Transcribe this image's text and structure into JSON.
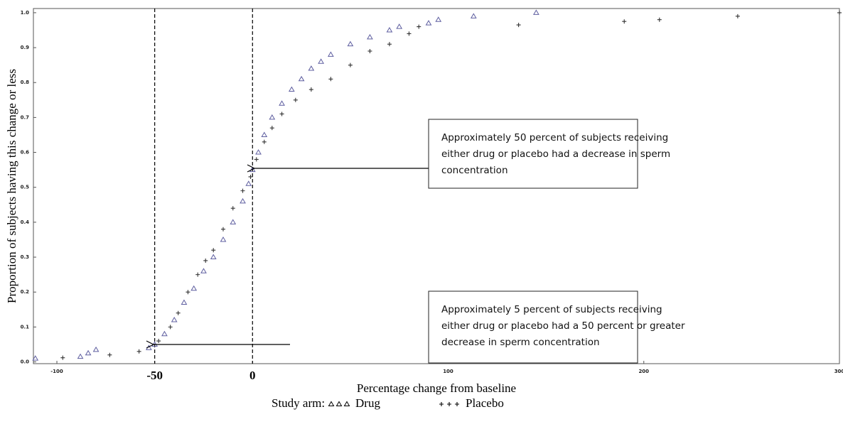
{
  "chart_data": {
    "type": "scatter",
    "xlabel": "Percentage change from baseline",
    "ylabel": "Proportion of subjects having this change or less",
    "legend_title": "Study arm:",
    "xlim": [
      -112,
      300
    ],
    "ylim": [
      -0.005,
      1.012
    ],
    "xticks": [
      -100,
      -50,
      0,
      100,
      200,
      300
    ],
    "reference_lines": [
      -50,
      0
    ],
    "yticks": [
      {
        "value": 0,
        "label": "0.0"
      },
      0.1,
      0.2,
      0.3,
      0.4,
      0.5,
      0.6,
      0.7,
      0.8,
      0.9,
      {
        "value": 1,
        "label": "1.0"
      }
    ],
    "series": [
      {
        "name": "Drug",
        "marker": "triangle",
        "color": "#5f5fa0",
        "x": [
          -111,
          -88,
          -84,
          -80,
          -53,
          -50,
          -45,
          -40,
          -35,
          -30,
          -25,
          -20,
          -15,
          -10,
          -5,
          -2,
          0,
          3,
          6,
          10,
          15,
          20,
          25,
          30,
          35,
          40,
          50,
          60,
          70,
          75,
          90,
          95,
          113,
          145
        ],
        "values": [
          0.01,
          0.015,
          0.025,
          0.035,
          0.04,
          0.05,
          0.08,
          0.12,
          0.17,
          0.21,
          0.26,
          0.3,
          0.35,
          0.4,
          0.46,
          0.51,
          0.55,
          0.6,
          0.65,
          0.7,
          0.74,
          0.78,
          0.81,
          0.84,
          0.86,
          0.88,
          0.91,
          0.93,
          0.95,
          0.96,
          0.97,
          0.98,
          0.99,
          1.0
        ]
      },
      {
        "name": "Placebo",
        "marker": "plus",
        "color": "#333333",
        "x": [
          -97,
          -73,
          -58,
          -48,
          -42,
          -38,
          -33,
          -28,
          -24,
          -20,
          -15,
          -10,
          -5,
          -1,
          2,
          6,
          10,
          15,
          22,
          30,
          40,
          50,
          60,
          70,
          80,
          85,
          136,
          190,
          208,
          248,
          300
        ],
        "values": [
          0.012,
          0.02,
          0.03,
          0.06,
          0.1,
          0.14,
          0.2,
          0.25,
          0.29,
          0.32,
          0.38,
          0.44,
          0.49,
          0.53,
          0.58,
          0.63,
          0.67,
          0.71,
          0.75,
          0.78,
          0.81,
          0.85,
          0.89,
          0.91,
          0.94,
          0.96,
          0.965,
          0.975,
          0.98,
          0.99,
          1.0
        ]
      }
    ],
    "annotations": [
      {
        "lines": [
          "Approximately 50 percent of subjects receiving",
          "either drug or placebo had a decrease in sperm",
          "concentration"
        ]
      },
      {
        "lines": [
          "Approximately 5 percent of subjects receiving",
          "either drug or placebo had a 50 percent or greater",
          "decrease in sperm concentration"
        ]
      }
    ]
  }
}
